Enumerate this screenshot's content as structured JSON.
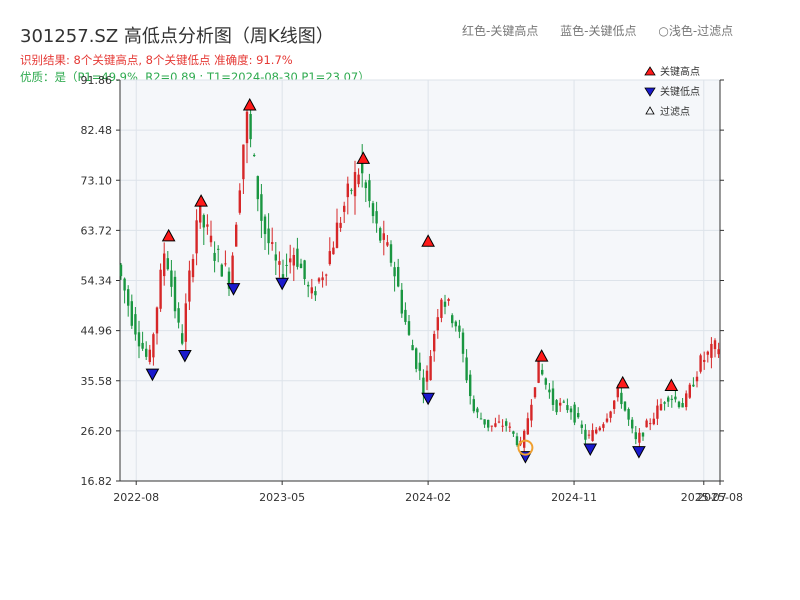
{
  "header": {
    "title": "301257.SZ 高低点分析图（周K线图）",
    "summary": "识别结果: 8个关键高点, 8个关键低点  准确度: 91.7%",
    "quality": "优质：是（P1=49.9%, R2=0.89 ; T1=2024-08-30 P1=23.07）",
    "legend_red": "红色-关键高点",
    "legend_blue": "蓝色-关键低点",
    "legend_light": "○浅色-过滤点"
  },
  "colors": {
    "up": "#d62728",
    "down": "#1a9641",
    "high_marker": "#ff1a1a",
    "low_marker": "#1a1acc",
    "highlight": "#f0a030",
    "plot_bg": "#f5f7fa",
    "grid": "#dde3ea"
  },
  "chart_data": {
    "type": "candlestick",
    "title": "301257.SZ 高低点分析图（周K线图）",
    "x_ticks": [
      "2022-08",
      "2023-05",
      "2024-02",
      "2024-11",
      "2025-07",
      "2025-08"
    ],
    "y_ticks": [
      16.82,
      26.2,
      35.58,
      44.96,
      54.34,
      63.72,
      73.1,
      82.48,
      91.86
    ],
    "ylim": [
      16.82,
      91.86
    ],
    "x_range": [
      "2022-07",
      "2025-08"
    ],
    "grid": true,
    "legend": {
      "placement": "top-right",
      "entries": [
        "关键高点",
        "关键低点",
        "过滤点"
      ]
    },
    "key_highs": [
      {
        "date": "2022-10",
        "value": 61.0
      },
      {
        "date": "2022-12",
        "value": 67.5
      },
      {
        "date": "2023-03",
        "value": 85.5
      },
      {
        "date": "2023-10",
        "value": 75.5
      },
      {
        "date": "2024-02",
        "value": 60.0
      },
      {
        "date": "2024-09",
        "value": 38.5
      },
      {
        "date": "2025-02",
        "value": 33.5
      },
      {
        "date": "2025-05",
        "value": 33.0
      }
    ],
    "key_lows": [
      {
        "date": "2022-09",
        "value": 38.5
      },
      {
        "date": "2022-11",
        "value": 42.0
      },
      {
        "date": "2023-02",
        "value": 54.5
      },
      {
        "date": "2023-05",
        "value": 55.5
      },
      {
        "date": "2024-02",
        "value": 34.0
      },
      {
        "date": "2024-08",
        "value": 23.07
      },
      {
        "date": "2024-12",
        "value": 24.5
      },
      {
        "date": "2025-03",
        "value": 24.0
      }
    ],
    "highlight_point": {
      "date": "2024-08",
      "value": 23.07
    },
    "price_path": [
      [
        "2022-07",
        58.0
      ],
      [
        "2022-08",
        47.0
      ],
      [
        "2022-09",
        38.5
      ],
      [
        "2022-10",
        61.0
      ],
      [
        "2022-11",
        42.0
      ],
      [
        "2022-12",
        67.5
      ],
      [
        "2023-01",
        60.0
      ],
      [
        "2023-02",
        54.5
      ],
      [
        "2023-03",
        85.5
      ],
      [
        "2023-04",
        65.0
      ],
      [
        "2023-05",
        55.5
      ],
      [
        "2023-06",
        60.0
      ],
      [
        "2023-07",
        51.0
      ],
      [
        "2023-08",
        58.0
      ],
      [
        "2023-09",
        68.0
      ],
      [
        "2023-10",
        75.5
      ],
      [
        "2023-11",
        64.0
      ],
      [
        "2023-12",
        58.0
      ],
      [
        "2024-01",
        44.0
      ],
      [
        "2024-02",
        34.0
      ],
      [
        "2024-03",
        52.0
      ],
      [
        "2024-04",
        46.0
      ],
      [
        "2024-05",
        30.0
      ],
      [
        "2024-06",
        27.0
      ],
      [
        "2024-07",
        27.5
      ],
      [
        "2024-08",
        23.07
      ],
      [
        "2024-09",
        38.5
      ],
      [
        "2024-10",
        31.0
      ],
      [
        "2024-11",
        30.5
      ],
      [
        "2024-12",
        24.5
      ],
      [
        "2025-01",
        28.0
      ],
      [
        "2025-02",
        33.5
      ],
      [
        "2025-03",
        24.0
      ],
      [
        "2025-04",
        28.5
      ],
      [
        "2025-05",
        33.0
      ],
      [
        "2025-06",
        31.0
      ],
      [
        "2025-07",
        39.0
      ],
      [
        "2025-08",
        42.0
      ]
    ]
  }
}
